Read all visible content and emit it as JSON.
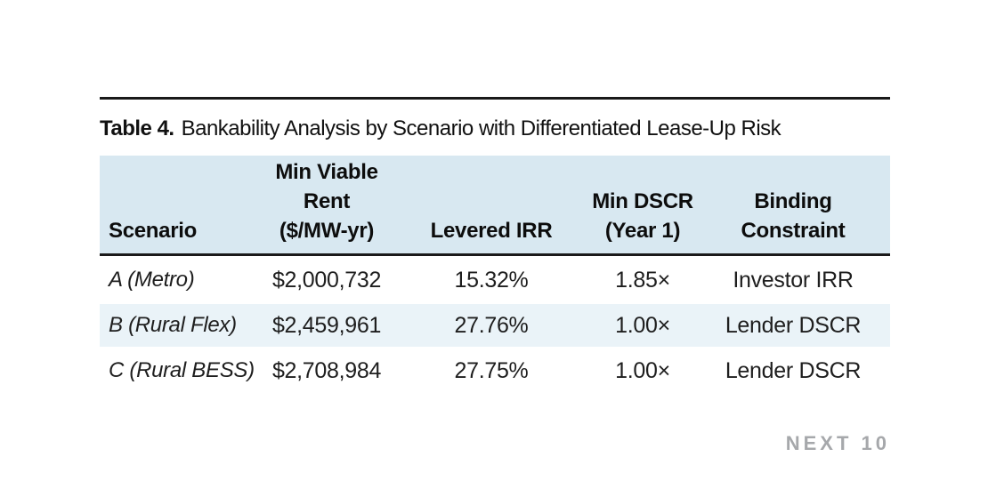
{
  "caption": {
    "label": "Table 4.",
    "text": "Bankability Analysis by Scenario with Differentiated Lease-Up Risk"
  },
  "chart_data": {
    "type": "table",
    "title": "Table 4. Bankability Analysis by Scenario with Differentiated Lease-Up Risk",
    "columns": [
      "Scenario",
      "Min Viable Rent ($/MW-yr)",
      "Levered IRR",
      "Min DSCR (Year 1)",
      "Binding Constraint"
    ],
    "rows": [
      [
        "A (Metro)",
        "$2,000,732",
        "15.32%",
        "1.85×",
        "Investor IRR"
      ],
      [
        "B (Rural Flex)",
        "$2,459,961",
        "27.76%",
        "1.00×",
        "Lender DSCR"
      ],
      [
        "C (Rural BESS)",
        "$2,708,984",
        "27.75%",
        "1.00×",
        "Lender DSCR"
      ]
    ]
  },
  "table": {
    "headers": [
      {
        "lines": [
          "Scenario"
        ]
      },
      {
        "lines": [
          "Min Viable",
          "Rent",
          "($/MW-yr)"
        ]
      },
      {
        "lines": [
          "Levered IRR"
        ]
      },
      {
        "lines": [
          "Min DSCR",
          "(Year 1)"
        ]
      },
      {
        "lines": [
          "Binding",
          "Constraint"
        ]
      }
    ],
    "rows": [
      {
        "scenario": "A (Metro)",
        "min_viable_rent": "$2,000,732",
        "levered_irr": "15.32%",
        "min_dscr": "1.85×",
        "binding_constraint": "Investor IRR"
      },
      {
        "scenario": "B (Rural Flex)",
        "min_viable_rent": "$2,459,961",
        "levered_irr": "27.76%",
        "min_dscr": "1.00×",
        "binding_constraint": "Lender DSCR"
      },
      {
        "scenario": "C (Rural BESS)",
        "min_viable_rent": "$2,708,984",
        "levered_irr": "27.75%",
        "min_dscr": "1.00×",
        "binding_constraint": "Lender DSCR"
      }
    ]
  },
  "footer": {
    "brand": "NEXT 10"
  },
  "colors": {
    "header_bg": "#d8e8f1",
    "row_alt_bg": "#eaf3f8",
    "rule": "#1a1a1a",
    "text": "#1e1e1e",
    "brand_gray": "#a6a8ab"
  }
}
